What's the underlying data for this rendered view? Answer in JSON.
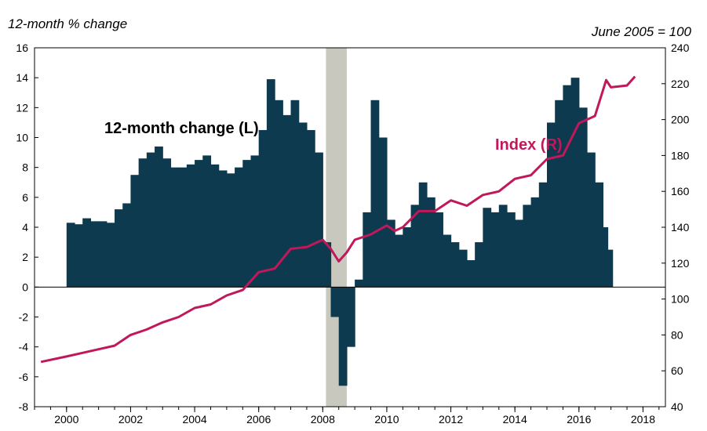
{
  "chart_data": {
    "type": "bar+line",
    "left_axis_title": "12-month % change",
    "right_axis_title": "June 2005 = 100",
    "left_ylim": [
      -8,
      16
    ],
    "left_ticks": [
      -8,
      -6,
      -4,
      -2,
      0,
      2,
      4,
      6,
      8,
      10,
      12,
      14,
      16
    ],
    "right_ylim": [
      40,
      240
    ],
    "right_ticks": [
      40,
      60,
      80,
      100,
      120,
      140,
      160,
      180,
      200,
      220,
      240
    ],
    "xlim": [
      1999.0,
      2018.7
    ],
    "x_tick_labels": [
      "2000",
      "2002",
      "2004",
      "2006",
      "2008",
      "2010",
      "2012",
      "2014",
      "2016",
      "2018"
    ],
    "x_tick_values": [
      2000,
      2002,
      2004,
      2006,
      2008,
      2010,
      2012,
      2014,
      2016,
      2018
    ],
    "recession": {
      "start": 2008.1,
      "end": 2008.75
    },
    "series": [
      {
        "name": "12-month change (L)",
        "kind": "bar",
        "color": "#0d3a4e",
        "points": [
          [
            2000.0,
            4.3
          ],
          [
            2000.25,
            4.2
          ],
          [
            2000.5,
            4.6
          ],
          [
            2000.75,
            4.4
          ],
          [
            2001.0,
            4.4
          ],
          [
            2001.25,
            4.3
          ],
          [
            2001.5,
            5.2
          ],
          [
            2001.75,
            5.6
          ],
          [
            2002.0,
            7.5
          ],
          [
            2002.25,
            8.6
          ],
          [
            2002.5,
            9.0
          ],
          [
            2002.75,
            9.4
          ],
          [
            2003.0,
            8.6
          ],
          [
            2003.25,
            8.0
          ],
          [
            2003.5,
            8.0
          ],
          [
            2003.75,
            8.2
          ],
          [
            2004.0,
            8.5
          ],
          [
            2004.25,
            8.8
          ],
          [
            2004.5,
            8.2
          ],
          [
            2004.75,
            7.8
          ],
          [
            2005.0,
            7.6
          ],
          [
            2005.25,
            8.0
          ],
          [
            2005.5,
            8.5
          ],
          [
            2005.75,
            8.8
          ],
          [
            2006.0,
            10.5
          ],
          [
            2006.25,
            13.9
          ],
          [
            2006.5,
            12.5
          ],
          [
            2006.75,
            11.5
          ],
          [
            2007.0,
            12.5
          ],
          [
            2007.25,
            11.0
          ],
          [
            2007.5,
            10.5
          ],
          [
            2007.75,
            9.0
          ],
          [
            2008.0,
            3.0
          ],
          [
            2008.25,
            -2.0
          ],
          [
            2008.5,
            -6.6
          ],
          [
            2008.75,
            -4.0
          ],
          [
            2009.0,
            0.5
          ],
          [
            2009.25,
            5.0
          ],
          [
            2009.5,
            12.5
          ],
          [
            2009.75,
            10.0
          ],
          [
            2010.0,
            4.5
          ],
          [
            2010.25,
            3.5
          ],
          [
            2010.5,
            4.0
          ],
          [
            2010.75,
            5.5
          ],
          [
            2011.0,
            7.0
          ],
          [
            2011.25,
            6.0
          ],
          [
            2011.5,
            5.0
          ],
          [
            2011.75,
            3.5
          ],
          [
            2012.0,
            3.0
          ],
          [
            2012.25,
            2.5
          ],
          [
            2012.5,
            1.8
          ],
          [
            2012.75,
            3.0
          ],
          [
            2013.0,
            5.3
          ],
          [
            2013.25,
            5.0
          ],
          [
            2013.5,
            5.5
          ],
          [
            2013.75,
            5.0
          ],
          [
            2014.0,
            4.5
          ],
          [
            2014.25,
            5.5
          ],
          [
            2014.5,
            6.0
          ],
          [
            2014.75,
            7.0
          ],
          [
            2015.0,
            11.0
          ],
          [
            2015.25,
            12.5
          ],
          [
            2015.5,
            13.5
          ],
          [
            2015.75,
            14.0
          ],
          [
            2016.0,
            12.0
          ],
          [
            2016.25,
            9.0
          ],
          [
            2016.5,
            7.0
          ],
          [
            2016.75,
            4.0
          ],
          [
            2016.9,
            2.5
          ]
        ]
      },
      {
        "name": "Index (R)",
        "kind": "line",
        "color": "#c0185a",
        "points": [
          [
            1999.2,
            65
          ],
          [
            2000.0,
            68
          ],
          [
            2000.5,
            70
          ],
          [
            2001.0,
            72
          ],
          [
            2001.5,
            74
          ],
          [
            2002.0,
            80
          ],
          [
            2002.5,
            83
          ],
          [
            2003.0,
            87
          ],
          [
            2003.5,
            90
          ],
          [
            2004.0,
            95
          ],
          [
            2004.5,
            97
          ],
          [
            2005.0,
            102
          ],
          [
            2005.5,
            105
          ],
          [
            2006.0,
            115
          ],
          [
            2006.5,
            117
          ],
          [
            2007.0,
            128
          ],
          [
            2007.5,
            129
          ],
          [
            2008.0,
            133
          ],
          [
            2008.25,
            128
          ],
          [
            2008.5,
            121
          ],
          [
            2008.75,
            126
          ],
          [
            2009.0,
            133
          ],
          [
            2009.5,
            136
          ],
          [
            2010.0,
            141
          ],
          [
            2010.25,
            138
          ],
          [
            2010.5,
            140
          ],
          [
            2011.0,
            149
          ],
          [
            2011.5,
            149
          ],
          [
            2012.0,
            155
          ],
          [
            2012.5,
            152
          ],
          [
            2013.0,
            158
          ],
          [
            2013.5,
            160
          ],
          [
            2014.0,
            167
          ],
          [
            2014.5,
            169
          ],
          [
            2015.0,
            178
          ],
          [
            2015.5,
            180
          ],
          [
            2016.0,
            198
          ],
          [
            2016.5,
            202
          ],
          [
            2016.85,
            222
          ],
          [
            2017.0,
            218
          ],
          [
            2017.5,
            219
          ],
          [
            2017.75,
            224
          ]
        ]
      }
    ],
    "annotations": [
      {
        "text": "12-month change (L)",
        "color": "#000000"
      },
      {
        "text": "Index (R)",
        "color": "#c0185a"
      }
    ]
  }
}
